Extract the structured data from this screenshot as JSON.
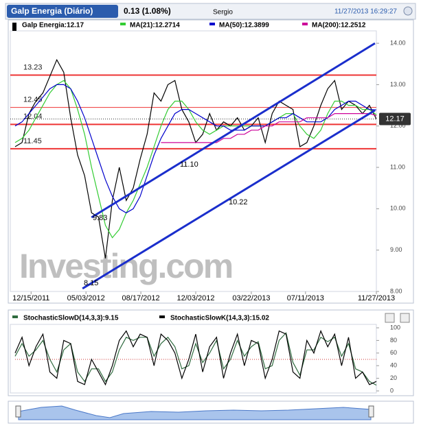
{
  "header": {
    "title": "Galp Energia (Diário)",
    "change": "0.13 (1.08%)",
    "user": "Sergio",
    "datetime": "11/27/2013 16:29:27"
  },
  "watermark": "Investing.com",
  "chart_data": [
    {
      "type": "line",
      "xlim": [
        0,
        52
      ],
      "xticks": [
        {
          "value": 2.3,
          "label": "12/15/2011"
        },
        {
          "value": 10.2,
          "label": "05/03/2012"
        },
        {
          "value": 18.1,
          "label": "08/17/2012"
        },
        {
          "value": 26,
          "label": "12/03/2012"
        },
        {
          "value": 34,
          "label": "03/22/2013"
        },
        {
          "value": 41.8,
          "label": "07/11/2013"
        },
        {
          "value": 52,
          "label": "11/27/2013"
        }
      ],
      "ylim": [
        8,
        14.3
      ],
      "yticks": [
        {
          "value": 8,
          "label": "8.00"
        },
        {
          "value": 9,
          "label": "9.00"
        },
        {
          "value": 10,
          "label": "10.00"
        },
        {
          "value": 11,
          "label": "11.00"
        },
        {
          "value": 12,
          "label": "12.00"
        },
        {
          "value": 13,
          "label": "13.00"
        },
        {
          "value": 14,
          "label": "14.00"
        }
      ],
      "series": [
        {
          "name": "Galp Energia:12.17",
          "color": "#000000",
          "values": [
            11.5,
            11.6,
            12.3,
            12.6,
            12.8,
            13.2,
            13.6,
            13.3,
            12.2,
            11.3,
            10.8,
            9.9,
            9.8,
            8.8,
            10.2,
            11.0,
            10.2,
            10.5,
            11.2,
            11.8,
            12.8,
            12.6,
            13.0,
            13.1,
            12.4,
            12.1,
            11.6,
            11.8,
            12.3,
            11.9,
            12.1,
            12.0,
            12.2,
            11.9,
            12.0,
            12.2,
            11.6,
            12.3,
            12.6,
            12.5,
            12.4,
            11.5,
            11.6,
            12.0,
            12.5,
            12.9,
            13.1,
            12.4,
            12.6,
            12.5,
            12.3,
            12.5,
            12.17
          ]
        },
        {
          "name": "MA(21):12.2714",
          "color": "#33cc33",
          "values": [
            11.6,
            11.7,
            11.9,
            12.2,
            12.5,
            12.8,
            13.0,
            13.1,
            12.9,
            12.4,
            11.8,
            11.0,
            10.3,
            9.6,
            9.3,
            9.5,
            9.9,
            10.2,
            10.6,
            11.0,
            11.5,
            12.0,
            12.4,
            12.6,
            12.6,
            12.4,
            12.1,
            11.9,
            11.8,
            11.9,
            12.0,
            12.0,
            12.0,
            12.0,
            12.0,
            12.0,
            12.0,
            12.1,
            12.2,
            12.3,
            12.3,
            12.0,
            11.8,
            11.7,
            11.9,
            12.3,
            12.6,
            12.6,
            12.5,
            12.5,
            12.4,
            12.4,
            12.27
          ]
        },
        {
          "name": "MA(50):12.3899",
          "color": "#0000cc",
          "values": [
            12.0,
            12.1,
            12.3,
            12.5,
            12.7,
            12.9,
            13.0,
            13.0,
            12.9,
            12.6,
            12.2,
            11.7,
            11.2,
            10.7,
            10.3,
            10.0,
            9.9,
            10.0,
            10.3,
            10.8,
            11.3,
            11.7,
            12.0,
            12.3,
            12.4,
            12.4,
            12.3,
            12.2,
            12.1,
            12.0,
            12.0,
            11.9,
            11.9,
            11.9,
            12.0,
            12.0,
            12.0,
            12.1,
            12.2,
            12.2,
            12.3,
            12.2,
            12.1,
            12.1,
            12.1,
            12.2,
            12.4,
            12.5,
            12.6,
            12.6,
            12.5,
            12.4,
            12.39
          ]
        },
        {
          "name": "MA(200):12.2512",
          "color": "#cc0099",
          "values": [
            null,
            null,
            null,
            null,
            null,
            null,
            null,
            null,
            null,
            null,
            null,
            null,
            null,
            null,
            null,
            null,
            null,
            null,
            null,
            null,
            null,
            11.6,
            11.6,
            11.6,
            11.6,
            11.6,
            11.6,
            11.6,
            11.6,
            11.6,
            11.7,
            11.7,
            11.8,
            11.8,
            11.9,
            11.9,
            12.0,
            12.0,
            12.1,
            12.1,
            12.1,
            12.1,
            12.2,
            12.2,
            12.2,
            12.2,
            12.3,
            12.3,
            12.3,
            12.3,
            12.3,
            12.3,
            12.25
          ]
        }
      ],
      "levels": [
        13.23,
        12.45,
        12.04,
        11.45
      ],
      "level_color": "#ee3333",
      "trendlines": [
        {
          "x": [
            11,
            51.8
          ],
          "y": [
            9.79,
            14
          ]
        },
        {
          "x": [
            9.7,
            51.8
          ],
          "y": [
            8.07,
            12.38
          ]
        }
      ],
      "trend_color": "#1a2ecc",
      "annotations": [
        "11.10",
        "10.22",
        "9.83",
        "8.15"
      ],
      "last_value": 12.17
    },
    {
      "type": "line",
      "xlim": [
        0,
        52
      ],
      "ylim": [
        0,
        100
      ],
      "yticks": [
        0,
        20,
        40,
        60,
        80,
        100
      ],
      "midline": 50,
      "series": [
        {
          "name": "StochasticSlowD(14,3,3):9.15",
          "color": "#2f6b3f",
          "values": [
            55,
            75,
            55,
            65,
            80,
            50,
            30,
            65,
            75,
            30,
            15,
            35,
            35,
            15,
            30,
            65,
            85,
            80,
            85,
            85,
            55,
            75,
            85,
            70,
            35,
            40,
            75,
            45,
            60,
            80,
            35,
            50,
            80,
            55,
            70,
            78,
            35,
            40,
            80,
            92,
            45,
            25,
            65,
            65,
            85,
            78,
            85,
            55,
            75,
            35,
            30,
            15,
            9.15
          ]
        },
        {
          "name": "StochasticSlowK(14,3,3):15.02",
          "color": "#000000",
          "values": [
            60,
            85,
            40,
            70,
            90,
            30,
            20,
            80,
            75,
            15,
            10,
            50,
            30,
            10,
            40,
            80,
            95,
            70,
            90,
            85,
            40,
            90,
            80,
            60,
            20,
            50,
            90,
            30,
            70,
            85,
            20,
            60,
            90,
            40,
            80,
            75,
            20,
            50,
            95,
            90,
            30,
            20,
            80,
            60,
            95,
            70,
            90,
            40,
            85,
            20,
            30,
            10,
            15.02
          ]
        }
      ]
    }
  ]
}
